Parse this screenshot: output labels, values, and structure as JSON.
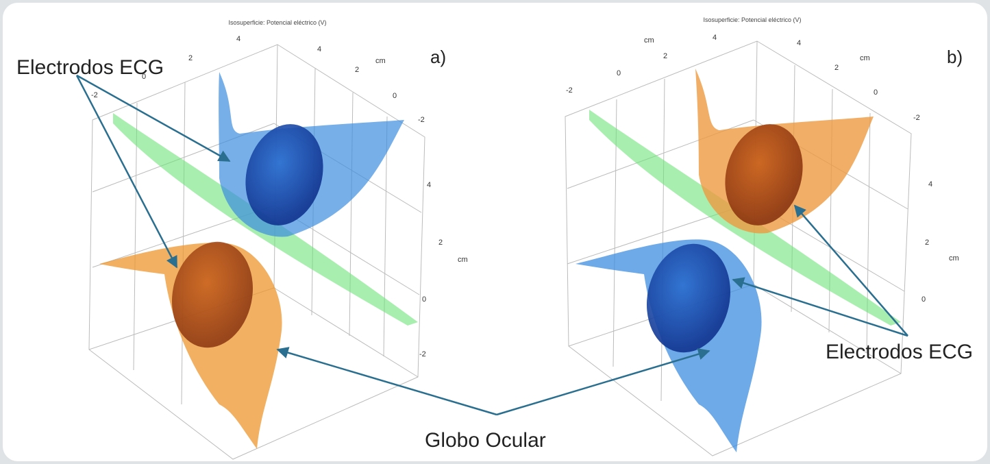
{
  "panels": [
    {
      "title": "Isosuperficie: Potencial eléctrico (V)",
      "label": "a)",
      "ticks": [
        "4",
        "2",
        "0",
        "-2",
        "4",
        "cm",
        "2",
        "0",
        "-2",
        "4",
        "2",
        "cm",
        "0",
        "-2"
      ]
    },
    {
      "title": "Isosuperficie: Potencial eléctrico (V)",
      "label": "b)",
      "ticks": [
        "cm",
        "4",
        "2",
        "0",
        "-2",
        "4",
        "cm",
        "2",
        "0",
        "-2",
        "4",
        "2",
        "cm",
        "0"
      ]
    }
  ],
  "annotations": {
    "electrodes_a": "Electrodos ECG",
    "electrodes_b": "Electrodos ECG",
    "eyeball": "Globo Ocular"
  }
}
